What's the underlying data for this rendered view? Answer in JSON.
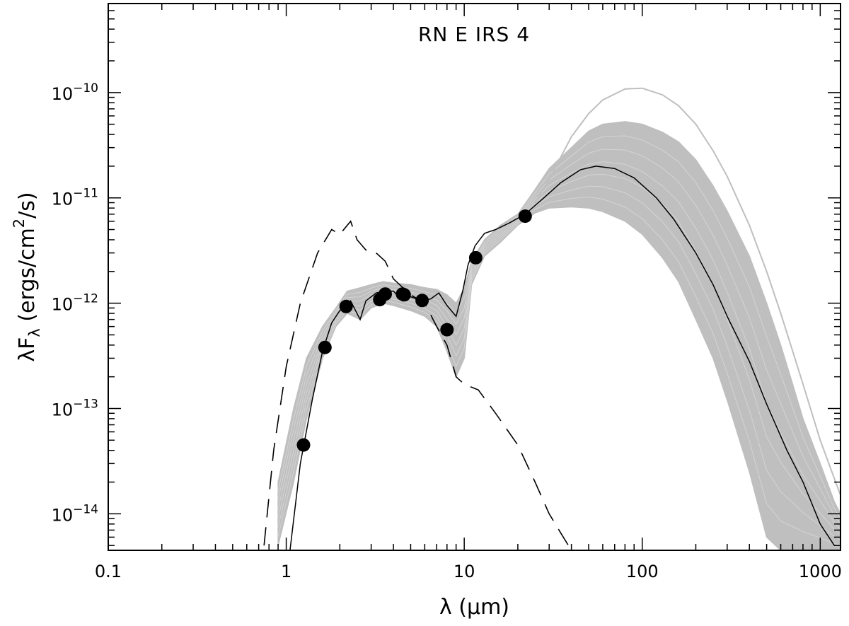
{
  "chart_data": {
    "type": "line",
    "title": "RN E IRS 4",
    "xlabel": "λ (μm)",
    "ylabel": "λF_λ (ergs/cm^2/s)",
    "x_scale": "log",
    "y_scale": "log",
    "xlim": [
      0.1,
      1300
    ],
    "ylim": [
      4.5e-15,
      7e-10
    ],
    "grid": false,
    "x_tick_labels": [
      {
        "value": 0.1,
        "label": "0.1"
      },
      {
        "value": 1,
        "label": "1"
      },
      {
        "value": 10,
        "label": "10"
      },
      {
        "value": 100,
        "label": "100"
      },
      {
        "value": 1000,
        "label": "1000"
      }
    ],
    "y_tick_labels": [
      {
        "value": 1e-14,
        "mantissa": "10",
        "exponent": "−14"
      },
      {
        "value": 1e-13,
        "mantissa": "10",
        "exponent": "−13"
      },
      {
        "value": 1e-12,
        "mantissa": "10",
        "exponent": "−12"
      },
      {
        "value": 1e-11,
        "mantissa": "10",
        "exponent": "−11"
      },
      {
        "value": 1e-10,
        "mantissa": "10",
        "exponent": "−10"
      }
    ],
    "series": [
      {
        "style": "points",
        "color": "#000000",
        "x": [
          1.25,
          1.65,
          2.17,
          3.35,
          3.6,
          4.5,
          4.6,
          5.8,
          8.0,
          11.6,
          22.0
        ],
        "y": [
          4.5e-14,
          3.8e-13,
          9.3e-13,
          1.08e-12,
          1.22e-12,
          1.22e-12,
          1.2e-12,
          1.06e-12,
          5.6e-13,
          2.7e-12,
          6.7e-12
        ]
      },
      {
        "style": "solid",
        "color": "#000000",
        "x": [
          1.05,
          1.2,
          1.4,
          1.6,
          1.8,
          2.0,
          2.3,
          2.6,
          2.8,
          3.2,
          3.6,
          4.0,
          4.5,
          5.0,
          5.8,
          6.5,
          7.2,
          8.0,
          9.0,
          9.8,
          10.5,
          11.5,
          13,
          15,
          18,
          22,
          28,
          35,
          45,
          55,
          70,
          90,
          120,
          150,
          200,
          250,
          300,
          400,
          500,
          650,
          800,
          1000,
          1200
        ],
        "y": [
          4.5e-15,
          3e-14,
          1.2e-13,
          3.5e-13,
          6.5e-13,
          8.5e-13,
          1.05e-12,
          7e-13,
          1.05e-12,
          1.25e-12,
          1.3e-12,
          1.3e-12,
          1.05e-12,
          1.15e-12,
          1.05e-12,
          1.1e-12,
          1.25e-12,
          9.5e-13,
          7.5e-13,
          1.3e-12,
          2.3e-12,
          3.5e-12,
          4.6e-12,
          5e-12,
          5.8e-12,
          7e-12,
          1e-11,
          1.4e-11,
          1.85e-11,
          2e-11,
          1.9e-11,
          1.55e-11,
          1e-11,
          6.3e-12,
          3e-12,
          1.5e-12,
          7.5e-13,
          2.8e-13,
          1.1e-13,
          4e-14,
          2e-14,
          8e-15,
          5e-15
        ]
      },
      {
        "style": "dashed",
        "color": "#000000",
        "x": [
          0.75,
          0.85,
          1.0,
          1.2,
          1.5,
          1.8,
          2.0,
          2.3,
          2.5,
          2.8,
          3.2,
          3.6,
          4.0,
          5.0,
          6.0,
          7.0,
          8.0,
          9.0,
          10,
          12,
          15,
          20,
          25,
          30,
          35,
          40
        ],
        "y": [
          5e-15,
          4e-14,
          2.5e-13,
          1e-12,
          3e-12,
          5e-12,
          4.5e-12,
          6e-12,
          4e-12,
          3.2e-12,
          3e-12,
          2.5e-12,
          1.7e-12,
          1.2e-12,
          1e-12,
          6e-13,
          4e-13,
          2e-13,
          1.7e-13,
          1.5e-13,
          9e-14,
          4.5e-14,
          2e-14,
          1e-14,
          6.5e-15,
          4.5e-15
        ]
      }
    ],
    "model_envelope": {
      "color": "#bfbfbf",
      "x": [
        0.9,
        1.1,
        1.3,
        1.6,
        1.9,
        2.2,
        2.6,
        3.0,
        3.5,
        4.0,
        5.0,
        6.0,
        7.0,
        8.0,
        9.0,
        10,
        11,
        13,
        16,
        20,
        25,
        30,
        40,
        50,
        60,
        80,
        100,
        130,
        160,
        200,
        250,
        300,
        400,
        500,
        600,
        700,
        800,
        1000,
        1200,
        1300
      ],
      "y_low": [
        5e-15,
        2e-14,
        8e-14,
        3e-13,
        6e-13,
        8e-13,
        7e-13,
        9e-13,
        1e-12,
        9.5e-13,
        8.5e-13,
        7.5e-13,
        6e-13,
        3.5e-13,
        2e-13,
        3e-13,
        1.5e-12,
        2.8e-12,
        3.8e-12,
        5.5e-12,
        7.2e-12,
        8e-12,
        8.2e-12,
        8e-12,
        7.4e-12,
        6e-12,
        4.5e-12,
        2.7e-12,
        1.6e-12,
        7e-13,
        3e-13,
        1.2e-13,
        2.5e-14,
        6e-15,
        4.5e-15,
        4.5e-15,
        4.5e-15,
        4.5e-15,
        4.5e-15,
        4.5e-15
      ],
      "y_high": [
        2e-14,
        1e-13,
        3e-13,
        6e-13,
        9e-13,
        1.3e-12,
        1.4e-12,
        1.5e-12,
        1.6e-12,
        1.55e-12,
        1.5e-12,
        1.4e-12,
        1.35e-12,
        1.2e-12,
        1e-12,
        1.4e-12,
        2.5e-12,
        4e-12,
        5.5e-12,
        7e-12,
        1.2e-11,
        1.9e-11,
        3e-11,
        4.3e-11,
        5e-11,
        5.3e-11,
        5e-11,
        4.2e-11,
        3.4e-11,
        2.3e-11,
        1.3e-11,
        7.5e-12,
        2.8e-12,
        1e-12,
        4e-13,
        1.7e-13,
        8e-14,
        3e-14,
        1.3e-14,
        1e-14
      ],
      "outer_curve": {
        "x": [
          25,
          30,
          40,
          50,
          60,
          80,
          100,
          130,
          160,
          200,
          250,
          300,
          400,
          500,
          600,
          700,
          800,
          1000,
          1300
        ],
        "y": [
          9e-12,
          1.5e-11,
          3.8e-11,
          6.3e-11,
          8.5e-11,
          1.08e-10,
          1.1e-10,
          9.5e-11,
          7.5e-11,
          5e-11,
          2.8e-11,
          1.6e-11,
          5.5e-12,
          2e-12,
          8e-13,
          3.5e-13,
          1.7e-13,
          5e-14,
          1.5e-14
        ]
      }
    }
  }
}
